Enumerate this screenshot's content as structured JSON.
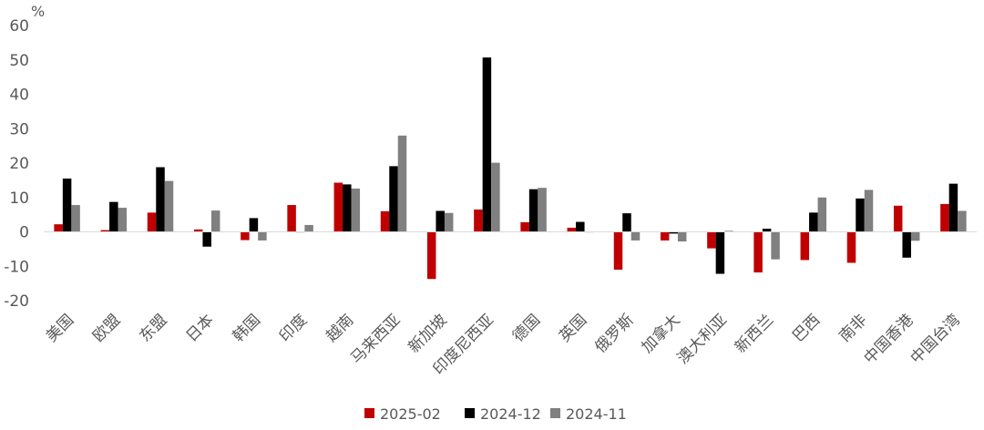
{
  "chart_data": {
    "type": "bar",
    "unit_label": "%",
    "ylim": [
      -20,
      60
    ],
    "yticks": [
      -20,
      -10,
      0,
      10,
      20,
      30,
      40,
      50,
      60
    ],
    "grid": false,
    "legend_position": "bottom-center",
    "categories": [
      "美国",
      "欧盟",
      "东盟",
      "日本",
      "韩国",
      "印度",
      "越南",
      "马来西亚",
      "新加坡",
      "印度尼西亚",
      "德国",
      "英国",
      "俄罗斯",
      "加拿大",
      "澳大利亚",
      "新西兰",
      "巴西",
      "南非",
      "中国香港",
      "中国台湾"
    ],
    "series": [
      {
        "name": "2025-02",
        "color": "#C00000",
        "values": [
          2.2,
          0.5,
          5.6,
          0.7,
          -2.4,
          7.8,
          14.3,
          6.0,
          -13.7,
          6.5,
          2.8,
          1.2,
          -11.0,
          -2.5,
          -4.8,
          -11.8,
          -8.2,
          -9.0,
          7.6,
          8.1
        ]
      },
      {
        "name": "2024-12",
        "color": "#000000",
        "values": [
          15.5,
          8.7,
          18.8,
          -4.3,
          4.0,
          0.0,
          13.8,
          19.1,
          6.1,
          50.7,
          12.4,
          2.9,
          5.4,
          -0.5,
          -12.2,
          0.9,
          5.6,
          9.7,
          -7.5,
          14.0
        ]
      },
      {
        "name": "2024-11",
        "color": "#808080",
        "values": [
          7.8,
          7.0,
          14.8,
          6.2,
          -2.5,
          2.0,
          12.6,
          28.0,
          5.5,
          20.1,
          12.8,
          0.0,
          -2.5,
          -2.8,
          0.3,
          -8.0,
          10.0,
          12.2,
          -2.6,
          6.1
        ]
      }
    ]
  }
}
